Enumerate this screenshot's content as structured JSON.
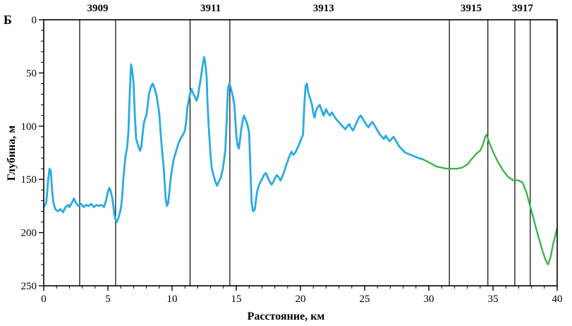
{
  "corner_label": "Б",
  "chart_data": {
    "type": "line",
    "title": "",
    "xlabel": "Расстояние, км",
    "ylabel": "Глубина, м",
    "xlim": [
      0,
      40
    ],
    "ylim": [
      0,
      250
    ],
    "y_inverted": true,
    "grid": false,
    "x_major_ticks": [
      0,
      5,
      10,
      15,
      20,
      25,
      30,
      35,
      40
    ],
    "x_minor_step": 1,
    "y_major_ticks": [
      0,
      50,
      100,
      150,
      200,
      250
    ],
    "y_minor_step": 10,
    "vertical_lines_km": [
      2.8,
      5.6,
      11.4,
      14.5,
      31.6,
      34.6,
      36.7,
      37.9
    ],
    "top_labels": [
      {
        "label": "3909",
        "x": 4.2
      },
      {
        "label": "3911",
        "x": 13.0
      },
      {
        "label": "3913",
        "x": 21.8
      },
      {
        "label": "3915",
        "x": 33.3
      },
      {
        "label": "3917",
        "x": 37.3
      }
    ],
    "series": [
      {
        "name": "depth-profile-west",
        "color": "#29abe2",
        "width": 2.8,
        "points": [
          [
            0,
            176
          ],
          [
            0.2,
            172
          ],
          [
            0.35,
            150
          ],
          [
            0.45,
            140
          ],
          [
            0.55,
            142
          ],
          [
            0.65,
            160
          ],
          [
            0.75,
            172
          ],
          [
            0.9,
            178
          ],
          [
            1.1,
            180
          ],
          [
            1.3,
            178
          ],
          [
            1.5,
            181
          ],
          [
            1.7,
            176
          ],
          [
            1.9,
            174
          ],
          [
            2.0,
            176
          ],
          [
            2.2,
            172
          ],
          [
            2.35,
            168
          ],
          [
            2.5,
            172
          ],
          [
            2.7,
            175
          ],
          [
            2.9,
            173
          ],
          [
            3.1,
            176
          ],
          [
            3.3,
            174
          ],
          [
            3.5,
            175
          ],
          [
            3.7,
            173
          ],
          [
            3.9,
            176
          ],
          [
            4.1,
            174
          ],
          [
            4.3,
            175
          ],
          [
            4.5,
            174
          ],
          [
            4.7,
            176
          ],
          [
            4.85,
            170
          ],
          [
            5.0,
            162
          ],
          [
            5.1,
            158
          ],
          [
            5.2,
            160
          ],
          [
            5.35,
            168
          ],
          [
            5.5,
            183
          ],
          [
            5.6,
            188
          ],
          [
            5.7,
            190
          ],
          [
            5.85,
            185
          ],
          [
            6.0,
            178
          ],
          [
            6.1,
            168
          ],
          [
            6.2,
            150
          ],
          [
            6.35,
            130
          ],
          [
            6.5,
            120
          ],
          [
            6.6,
            105
          ],
          [
            6.7,
            70
          ],
          [
            6.8,
            42
          ],
          [
            6.9,
            48
          ],
          [
            7.0,
            60
          ],
          [
            7.1,
            90
          ],
          [
            7.2,
            112
          ],
          [
            7.35,
            118
          ],
          [
            7.5,
            123
          ],
          [
            7.6,
            120
          ],
          [
            7.7,
            108
          ],
          [
            7.8,
            97
          ],
          [
            7.9,
            93
          ],
          [
            8.0,
            90
          ],
          [
            8.1,
            80
          ],
          [
            8.2,
            70
          ],
          [
            8.35,
            63
          ],
          [
            8.5,
            60
          ],
          [
            8.65,
            65
          ],
          [
            8.8,
            72
          ],
          [
            8.9,
            80
          ],
          [
            9.0,
            88
          ],
          [
            9.1,
            105
          ],
          [
            9.2,
            120
          ],
          [
            9.35,
            140
          ],
          [
            9.5,
            168
          ],
          [
            9.6,
            175
          ],
          [
            9.7,
            172
          ],
          [
            9.8,
            160
          ],
          [
            9.9,
            148
          ],
          [
            10.0,
            140
          ],
          [
            10.15,
            130
          ],
          [
            10.3,
            124
          ],
          [
            10.5,
            116
          ],
          [
            10.7,
            111
          ],
          [
            10.9,
            107
          ],
          [
            11.0,
            104
          ],
          [
            11.1,
            95
          ],
          [
            11.2,
            82
          ],
          [
            11.35,
            72
          ],
          [
            11.5,
            65
          ],
          [
            11.6,
            68
          ],
          [
            11.75,
            72
          ],
          [
            11.9,
            76
          ],
          [
            12.0,
            73
          ],
          [
            12.1,
            65
          ],
          [
            12.2,
            58
          ],
          [
            12.35,
            45
          ],
          [
            12.5,
            35
          ],
          [
            12.6,
            42
          ],
          [
            12.7,
            55
          ],
          [
            12.75,
            75
          ],
          [
            12.85,
            100
          ],
          [
            13.0,
            128
          ],
          [
            13.1,
            140
          ],
          [
            13.25,
            147
          ],
          [
            13.4,
            153
          ],
          [
            13.5,
            156
          ],
          [
            13.65,
            152
          ],
          [
            13.8,
            148
          ],
          [
            13.95,
            140
          ],
          [
            14.05,
            132
          ],
          [
            14.15,
            122
          ],
          [
            14.25,
            95
          ],
          [
            14.35,
            65
          ],
          [
            14.45,
            60
          ],
          [
            14.55,
            63
          ],
          [
            14.7,
            70
          ],
          [
            14.85,
            80
          ],
          [
            15.0,
            108
          ],
          [
            15.1,
            118
          ],
          [
            15.2,
            121
          ],
          [
            15.3,
            112
          ],
          [
            15.4,
            102
          ],
          [
            15.5,
            95
          ],
          [
            15.6,
            90
          ],
          [
            15.7,
            93
          ],
          [
            15.8,
            96
          ],
          [
            15.9,
            100
          ],
          [
            16.0,
            106
          ],
          [
            16.1,
            140
          ],
          [
            16.2,
            172
          ],
          [
            16.3,
            180
          ],
          [
            16.45,
            178
          ],
          [
            16.6,
            163
          ],
          [
            16.75,
            156
          ],
          [
            16.9,
            152
          ],
          [
            17.0,
            150
          ],
          [
            17.15,
            146
          ],
          [
            17.3,
            144
          ],
          [
            17.45,
            148
          ],
          [
            17.6,
            152
          ],
          [
            17.75,
            155
          ],
          [
            17.9,
            152
          ],
          [
            18.0,
            149
          ],
          [
            18.15,
            146
          ],
          [
            18.3,
            148
          ],
          [
            18.45,
            151
          ],
          [
            18.6,
            147
          ],
          [
            18.75,
            142
          ],
          [
            18.9,
            136
          ],
          [
            19.0,
            133
          ],
          [
            19.15,
            128
          ],
          [
            19.3,
            124
          ],
          [
            19.45,
            127
          ],
          [
            19.6,
            125
          ],
          [
            19.75,
            121
          ],
          [
            19.9,
            117
          ],
          [
            20.0,
            114
          ],
          [
            20.1,
            111
          ],
          [
            20.2,
            108
          ],
          [
            20.3,
            80
          ],
          [
            20.4,
            62
          ],
          [
            20.5,
            60
          ],
          [
            20.6,
            68
          ],
          [
            20.7,
            72
          ],
          [
            20.8,
            76
          ],
          [
            20.9,
            80
          ],
          [
            21.0,
            88
          ],
          [
            21.1,
            92
          ],
          [
            21.2,
            86
          ],
          [
            21.35,
            82
          ],
          [
            21.5,
            80
          ],
          [
            21.65,
            85
          ],
          [
            21.8,
            90
          ],
          [
            21.9,
            87
          ],
          [
            22.0,
            84
          ],
          [
            22.15,
            88
          ],
          [
            22.3,
            90
          ],
          [
            22.45,
            87
          ],
          [
            22.6,
            90
          ],
          [
            22.75,
            93
          ],
          [
            22.9,
            95
          ],
          [
            23.05,
            97
          ],
          [
            23.2,
            99
          ],
          [
            23.35,
            101
          ],
          [
            23.5,
            103
          ],
          [
            23.65,
            100
          ],
          [
            23.8,
            98
          ],
          [
            23.95,
            102
          ],
          [
            24.1,
            104
          ],
          [
            24.25,
            100
          ],
          [
            24.4,
            96
          ],
          [
            24.55,
            92
          ],
          [
            24.7,
            90
          ],
          [
            24.85,
            93
          ],
          [
            25.0,
            96
          ],
          [
            25.15,
            99
          ],
          [
            25.3,
            101
          ],
          [
            25.45,
            98
          ],
          [
            25.6,
            96
          ],
          [
            25.75,
            99
          ],
          [
            25.9,
            102
          ],
          [
            26.05,
            105
          ],
          [
            26.2,
            108
          ],
          [
            26.35,
            110
          ],
          [
            26.5,
            112
          ],
          [
            26.65,
            109
          ],
          [
            26.8,
            112
          ],
          [
            26.95,
            114
          ],
          [
            27.1,
            112
          ],
          [
            27.25,
            110
          ],
          [
            27.4,
            113
          ],
          [
            27.55,
            116
          ],
          [
            27.7,
            119
          ],
          [
            27.85,
            121
          ],
          [
            28.0,
            123
          ],
          [
            28.2,
            125
          ],
          [
            28.4,
            126
          ],
          [
            28.6,
            127
          ],
          [
            28.8,
            128
          ],
          [
            29.0,
            129
          ],
          [
            29.2,
            130
          ],
          [
            29.5,
            131
          ]
        ]
      },
      {
        "name": "depth-profile-east",
        "color": "#3bb54a",
        "width": 2.4,
        "points": [
          [
            29.5,
            131
          ],
          [
            30.0,
            134
          ],
          [
            30.3,
            136
          ],
          [
            30.6,
            138
          ],
          [
            31.0,
            139
          ],
          [
            31.4,
            140
          ],
          [
            31.8,
            140
          ],
          [
            32.2,
            140
          ],
          [
            32.6,
            139
          ],
          [
            33.0,
            136
          ],
          [
            33.4,
            130
          ],
          [
            33.7,
            126
          ],
          [
            34.0,
            123
          ],
          [
            34.2,
            118
          ],
          [
            34.4,
            110
          ],
          [
            34.5,
            108
          ],
          [
            34.7,
            115
          ],
          [
            35.0,
            124
          ],
          [
            35.4,
            134
          ],
          [
            35.8,
            142
          ],
          [
            36.2,
            148
          ],
          [
            36.6,
            151
          ],
          [
            37.0,
            151
          ],
          [
            37.3,
            153
          ],
          [
            37.6,
            162
          ],
          [
            38.0,
            180
          ],
          [
            38.4,
            198
          ],
          [
            38.8,
            215
          ],
          [
            39.1,
            226
          ],
          [
            39.3,
            230
          ],
          [
            39.5,
            222
          ],
          [
            39.7,
            210
          ],
          [
            40.0,
            196
          ]
        ]
      }
    ]
  }
}
